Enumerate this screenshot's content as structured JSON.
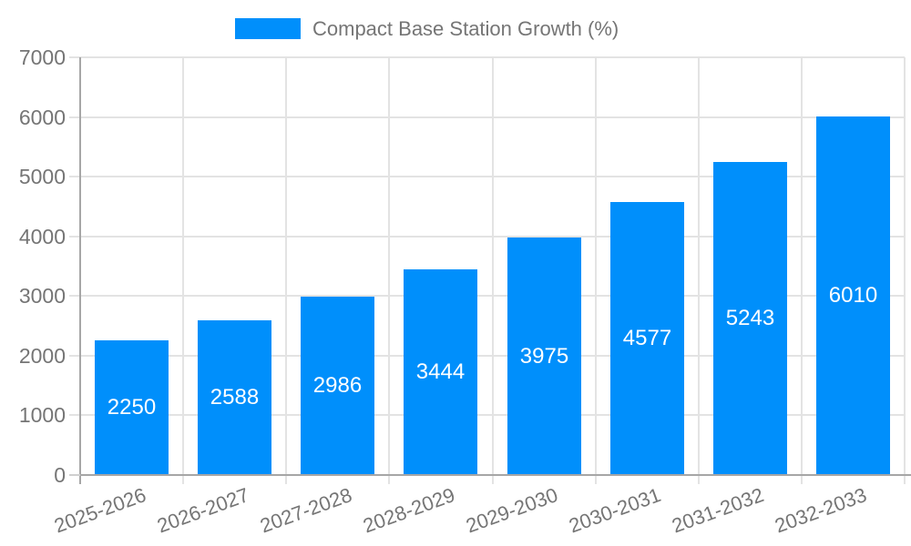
{
  "chart_data": {
    "type": "bar",
    "title": "",
    "legend": {
      "label": "Compact Base Station Growth (%)",
      "position": "top"
    },
    "categories": [
      "2025-2026",
      "2026-2027",
      "2027-2028",
      "2028-2029",
      "2029-2030",
      "2030-2031",
      "2031-2032",
      "2032-2033"
    ],
    "values": [
      2250,
      2588,
      2986,
      3444,
      3975,
      4577,
      5243,
      6010
    ],
    "bar_value_labels": true,
    "xlabel": "",
    "ylabel": "",
    "ylim": [
      0,
      7000
    ],
    "yticks": [
      0,
      1000,
      2000,
      3000,
      4000,
      5000,
      6000,
      7000
    ],
    "grid": true,
    "x_label_rotation_deg": -20
  },
  "colors": {
    "bar": "#008FFB",
    "value_label": "#ffffff",
    "axis_label": "#757575",
    "legend_text": "#757575",
    "grid_line": "#e3e3e3",
    "axis_line": "#a6a6a6",
    "tick_line": "#d0d0d0",
    "background": "#ffffff"
  }
}
